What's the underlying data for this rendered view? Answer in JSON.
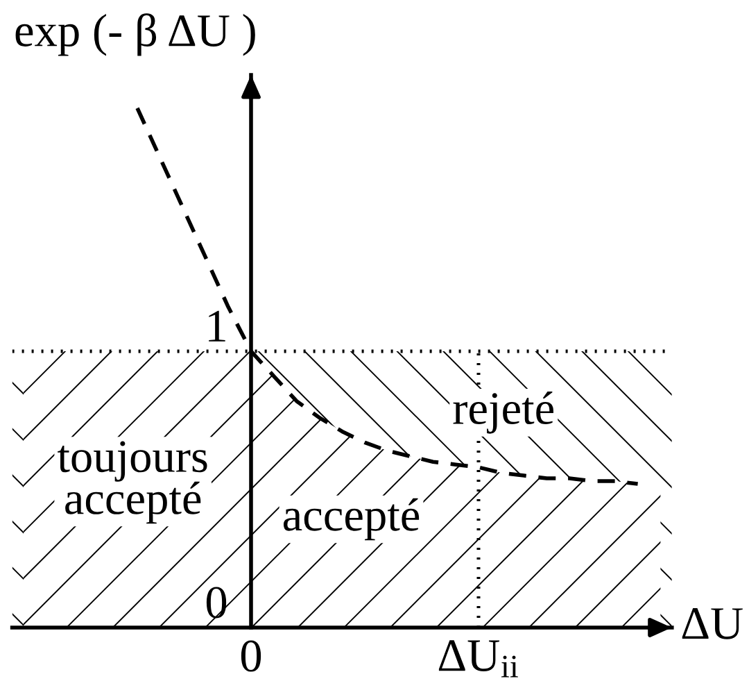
{
  "chart_data": {
    "type": "line",
    "ylabel": "exp (- β ΔU )",
    "xlabel": "ΔU",
    "categories": [
      null,
      null,
      null,
      null,
      null,
      null,
      null,
      null,
      null,
      null,
      "0",
      null,
      null,
      null,
      null,
      null,
      null,
      null,
      null,
      null,
      "ΔU$_{ii}$",
      null,
      null,
      null,
      null,
      null,
      null,
      null,
      null
    ],
    "ylim": [
      0,
      2
    ],
    "yticks": [
      0,
      1
    ],
    "ref_lines": [
      {
        "axis": "y",
        "value": 1,
        "color": "#000000",
        "line_style": "dotted"
      }
    ],
    "bands": [
      {
        "axis": "y",
        "from": 0,
        "to": 1,
        "color": "#000000"
      }
    ],
    "series": [
      {
        "type": "area",
        "color": "#000000",
        "values": [
          1,
          1,
          1,
          1,
          1,
          1,
          1,
          1,
          1,
          1,
          1,
          0.91,
          0.82,
          0.76,
          0.71,
          0.67,
          0.64,
          0.62,
          0.6,
          0.59,
          0.58,
          0.56,
          0.55,
          0.54,
          0.54,
          0.53,
          0.53,
          0.52,
          0.51
        ]
      },
      {
        "color": "#000000",
        "line_style": "dashed",
        "values": [
          null,
          null,
          null,
          null,
          null,
          1.88,
          1.7,
          1.52,
          1.34,
          1.16,
          1,
          0.91,
          0.82,
          0.76,
          0.71,
          0.67,
          0.64,
          0.62,
          0.6,
          0.59,
          0.58,
          0.56,
          0.55,
          0.54,
          0.54,
          0.53,
          0.53,
          0.52,
          null
        ]
      },
      {
        "color": "#000000",
        "line_style": "dotted",
        "x": [
          "ΔU$_{ii}$",
          "ΔU$_{ii}$"
        ],
        "values": [
          0,
          1
        ]
      }
    ],
    "annotations": [
      "toujours\naccepté",
      "accepté",
      "rejeté"
    ]
  }
}
